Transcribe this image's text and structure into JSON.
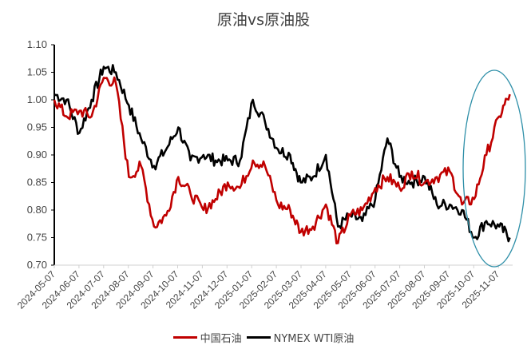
{
  "chart_data": {
    "type": "line",
    "title": "原油vs原油股",
    "xlabel": "",
    "ylabel": "",
    "ylim": [
      0.7,
      1.1
    ],
    "yticks": [
      "1.10",
      "1.05",
      "1.00",
      "0.95",
      "0.90",
      "0.85",
      "0.80",
      "0.75",
      "0.70"
    ],
    "xticks": [
      "2024-05-07",
      "2024-06-07",
      "2024-07-07",
      "2024-08-07",
      "2024-09-07",
      "2024-10-07",
      "2024-11-07",
      "2024-12-07",
      "2025-01-07",
      "2025-02-07",
      "2025-03-07",
      "2025-04-07",
      "2025-05-07",
      "2025-06-07",
      "2025-07-07",
      "2025-08-07",
      "2025-09-07",
      "2025-10-07",
      "2025-11-07"
    ],
    "grid": false,
    "legend_position": "bottom",
    "annotation": "ellipse highlighting 2025-10 to 2025-11 divergence",
    "x": [
      "2024-05-07",
      "2024-05-22",
      "2024-06-07",
      "2024-06-22",
      "2024-07-07",
      "2024-07-22",
      "2024-08-07",
      "2024-08-22",
      "2024-09-07",
      "2024-09-22",
      "2024-10-07",
      "2024-10-22",
      "2024-11-07",
      "2024-11-22",
      "2024-12-07",
      "2024-12-22",
      "2025-01-07",
      "2025-01-22",
      "2025-02-07",
      "2025-02-22",
      "2025-03-07",
      "2025-03-22",
      "2025-04-07",
      "2025-04-22",
      "2025-05-07",
      "2025-05-22",
      "2025-06-07",
      "2025-06-22",
      "2025-07-07",
      "2025-07-22",
      "2025-08-07",
      "2025-08-22",
      "2025-09-07",
      "2025-09-22",
      "2025-10-07",
      "2025-10-22",
      "2025-11-07",
      "2025-11-20"
    ],
    "series": [
      {
        "name": "中国石油",
        "color": "#c00000",
        "values": [
          1.0,
          0.97,
          0.98,
          0.97,
          1.04,
          1.03,
          0.86,
          0.88,
          0.77,
          0.79,
          0.86,
          0.83,
          0.8,
          0.82,
          0.85,
          0.84,
          0.89,
          0.88,
          0.81,
          0.8,
          0.76,
          0.77,
          0.81,
          0.74,
          0.79,
          0.8,
          0.84,
          0.86,
          0.84,
          0.87,
          0.85,
          0.86,
          0.87,
          0.81,
          0.82,
          0.9,
          0.97,
          1.01
        ]
      },
      {
        "name": "NYMEX WTI原油",
        "color": "#000000",
        "values": [
          1.01,
          1.0,
          0.94,
          1.0,
          1.06,
          1.05,
          0.99,
          0.93,
          0.88,
          0.91,
          0.95,
          0.89,
          0.9,
          0.89,
          0.89,
          0.89,
          1.0,
          0.96,
          0.91,
          0.9,
          0.85,
          0.86,
          0.9,
          0.77,
          0.79,
          0.78,
          0.82,
          0.93,
          0.86,
          0.85,
          0.86,
          0.81,
          0.81,
          0.8,
          0.75,
          0.78,
          0.77,
          0.75
        ]
      }
    ]
  },
  "legend": {
    "items": [
      {
        "label": "中国石油",
        "color": "#c00000"
      },
      {
        "label": "NYMEX WTI原油",
        "color": "#000000"
      }
    ]
  },
  "annotation_color": "#2e8fa8"
}
